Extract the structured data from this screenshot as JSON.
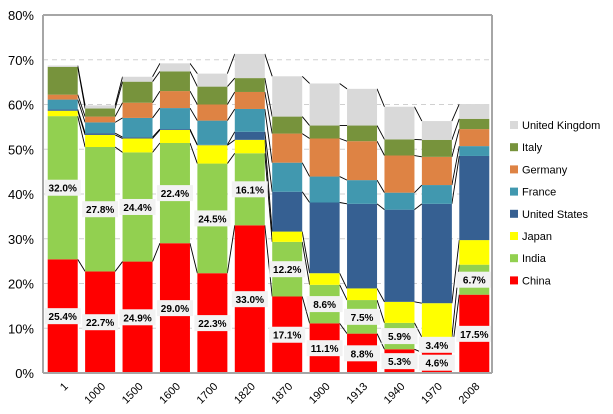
{
  "chart_data": {
    "type": "bar",
    "stacked": true,
    "title": "",
    "xlabel": "",
    "ylabel": "",
    "ylim": [
      0,
      80
    ],
    "yticks": [
      "0%",
      "10%",
      "20%",
      "30%",
      "40%",
      "50%",
      "60%",
      "70%",
      "80%"
    ],
    "ytick_values": [
      0,
      10,
      20,
      30,
      40,
      50,
      60,
      70,
      80
    ],
    "grid": true,
    "legend_position": "right",
    "categories": [
      "1",
      "1000",
      "1500",
      "1600",
      "1700",
      "1820",
      "1870",
      "1900",
      "1913",
      "1940",
      "1970",
      "2008"
    ],
    "series": [
      {
        "name": "China",
        "color": "#ff0000",
        "values": [
          25.4,
          22.7,
          24.9,
          29.0,
          22.3,
          33.0,
          17.1,
          11.1,
          8.8,
          5.3,
          4.6,
          17.5
        ],
        "labeled": true
      },
      {
        "name": "India",
        "color": "#92d050",
        "values": [
          32.0,
          27.8,
          24.4,
          22.4,
          24.5,
          16.1,
          12.2,
          8.6,
          7.5,
          5.9,
          3.4,
          6.7
        ],
        "labeled": true
      },
      {
        "name": "Japan",
        "color": "#ffff00",
        "values": [
          1.2,
          2.7,
          3.1,
          2.9,
          4.1,
          3.0,
          2.3,
          2.6,
          2.6,
          4.7,
          7.6,
          5.5
        ],
        "labeled": false
      },
      {
        "name": "United States",
        "color": "#366092",
        "values": [
          0.3,
          0.4,
          0.3,
          0.2,
          0.1,
          1.8,
          8.9,
          15.8,
          18.9,
          20.6,
          22.2,
          18.8
        ],
        "labeled": false
      },
      {
        "name": "France",
        "color": "#4198af",
        "values": [
          2.2,
          2.4,
          4.3,
          4.7,
          5.4,
          5.1,
          6.5,
          5.8,
          5.3,
          3.8,
          4.2,
          2.2
        ],
        "labeled": false
      },
      {
        "name": "Germany",
        "color": "#de8344",
        "values": [
          1.1,
          1.3,
          3.4,
          3.8,
          3.6,
          3.8,
          6.5,
          8.5,
          8.7,
          8.3,
          6.3,
          3.8
        ],
        "labeled": false
      },
      {
        "name": "Italy",
        "color": "#77933c",
        "values": [
          6.2,
          1.8,
          4.7,
          4.4,
          4.0,
          3.1,
          3.8,
          2.9,
          3.5,
          3.6,
          3.8,
          2.3
        ],
        "labeled": false
      },
      {
        "name": "United Kingdom",
        "color": "#d9d9d9",
        "values": [
          0.3,
          0.7,
          1.1,
          1.8,
          2.9,
          5.4,
          9.0,
          9.4,
          8.2,
          7.3,
          4.2,
          3.3
        ],
        "labeled": false
      }
    ],
    "legend_order": [
      "United Kingdom",
      "Italy",
      "Germany",
      "France",
      "United States",
      "Japan",
      "India",
      "China"
    ],
    "value_format": "{v}%"
  }
}
